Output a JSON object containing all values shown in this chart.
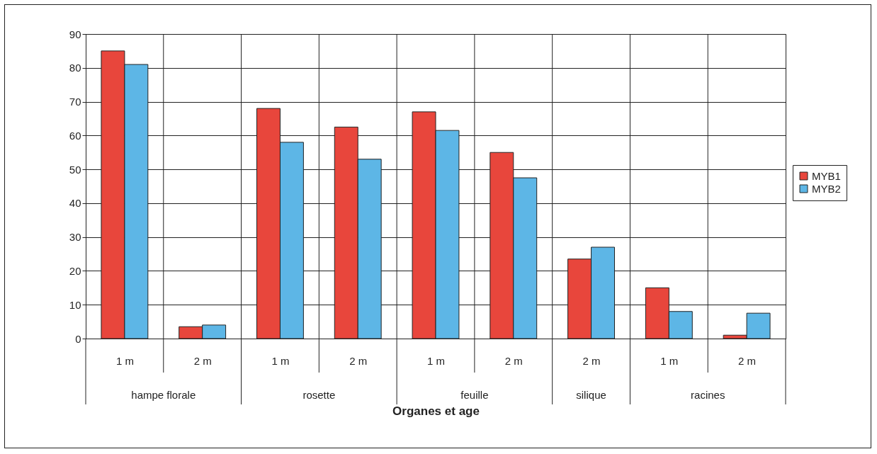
{
  "chart_data": {
    "type": "bar",
    "xlabel": "Organes et age",
    "categories": [
      "1 m",
      "2 m",
      "1 m",
      "2 m",
      "1 m",
      "2 m",
      "2 m",
      "1 m",
      "2 m"
    ],
    "annotations": [
      "hampe florale",
      "rosette",
      "feuille",
      "silique",
      "racines"
    ],
    "series": [
      {
        "name": "MYB1",
        "color": "#e8463c",
        "values": [
          85,
          3.5,
          68,
          62.5,
          67,
          55,
          23.5,
          15,
          1
        ]
      },
      {
        "name": "MYB2",
        "color": "#5db6e6",
        "values": [
          81,
          4,
          58,
          53,
          61.5,
          47.5,
          27,
          8,
          7.5
        ]
      }
    ],
    "ylim": [
      0,
      90
    ],
    "yticks": [
      0,
      10,
      20,
      30,
      40,
      50,
      60,
      70,
      80,
      90
    ],
    "grid": true,
    "legend": "right"
  }
}
